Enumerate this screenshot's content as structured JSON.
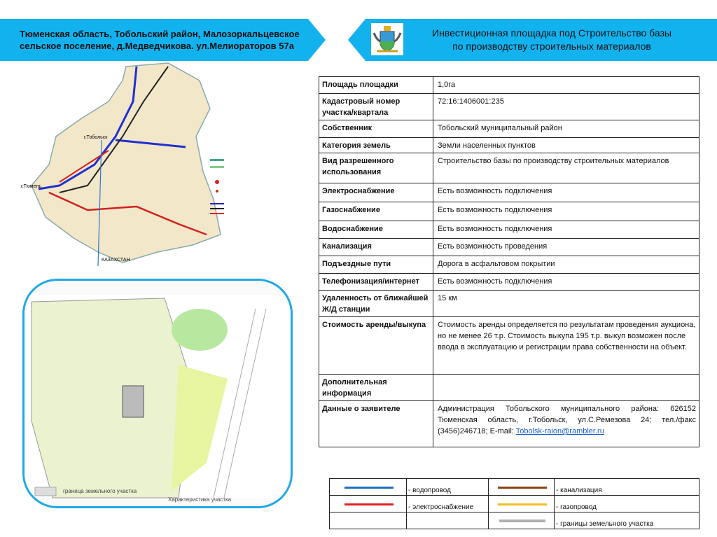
{
  "header": {
    "location_line1": "Тюменская область, Тобольский  район, Малозоркальцевское",
    "location_line2": "сельское поселение, д.Медведчикова. ул.Мелиораторов 57а",
    "title_line1": "Инвестиционная площадка под Строительство базы",
    "title_line2": "по производству строительных материалов",
    "crest_icon": "coat-of-arms-icon",
    "banner_color": "#12b2ef"
  },
  "map": {
    "city_tobolsk": "г.Тобольск",
    "city_tyumen": "г.Тюмень",
    "region_kazakhstan": "КАЗАХСТАН",
    "boundary_caption": "граница земельного участка",
    "site_caption": "Характеристика участка"
  },
  "table": [
    {
      "label": "Площадь площадки",
      "value": "1,0га"
    },
    {
      "label": "Кадастровый номер участка/квартала",
      "value": "72:16:1406001:235"
    },
    {
      "label": "Собственник",
      "value": "Тобольский муниципальный район"
    },
    {
      "label": "Категория земель",
      "value": "Земли населенных пунктов"
    },
    {
      "label": "Вид разрешенного использования",
      "value": "Строительство базы по производству строительных материалов"
    },
    {
      "label": "Электроснабжение",
      "value": "Есть возможность подключения"
    },
    {
      "label": "Газоснабжение",
      "value": "Есть возможность подключения"
    },
    {
      "label": "Водоснабжение",
      "value": "Есть возможность подключения"
    },
    {
      "label": "Канализация",
      "value": "Есть возможность проведения"
    },
    {
      "label": "Подъездные пути",
      "value": "Дорога в асфальтовом покрытии"
    },
    {
      "label": "Телефонизация/интернет",
      "value": "Есть возможность подключения"
    },
    {
      "label": "Удаленность от ближайшей Ж/Д станции",
      "value": "15 км"
    },
    {
      "label": "Стоимость аренды/выкупа",
      "value": "Стоимость аренды определяется по результатам проведения аукциона, но не менее 26 т.р. Стоимость выкупа 195 т.р. выкуп возможен после ввода в эксплуатацию и регистрации права собственности на объект."
    },
    {
      "label": "Дополнительная информация",
      "value": ""
    },
    {
      "label": "Данные о заявителе",
      "value": "Администрация Тобольского муниципального района:  626152 Тюменская область, г.Тобольск, ул.С.Ремезова 24; тел./факс (3456)246718; E-mail: ",
      "email": "Tobolsk-raion@rambler.ru"
    }
  ],
  "legend": [
    {
      "label": "- водопровод",
      "color": "#1f6fc0"
    },
    {
      "label": "- канализация",
      "color": "#8b4513"
    },
    {
      "label": "- электроснабжение",
      "color": "#e02020"
    },
    {
      "label": "- газопровод",
      "color": "#f5c020"
    },
    {
      "label": "- границы земельного участка",
      "color": "#b0b0b0"
    }
  ]
}
